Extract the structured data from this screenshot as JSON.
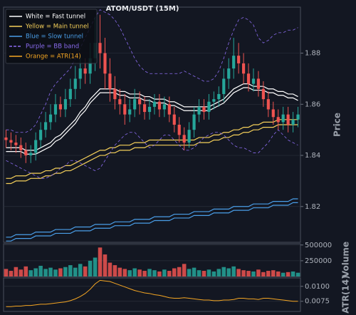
{
  "chart_data": {
    "type": "candlestick",
    "title": "ATOM/USDT (15M)",
    "ylabel": "Price",
    "up_color": "#26a69a",
    "down_color": "#ef5350",
    "grid": true,
    "legend": "upper left",
    "ylim": [
      1.806,
      1.898
    ],
    "yticks": [
      1.82,
      1.84,
      1.86,
      1.88
    ],
    "open": [
      1.847,
      1.846,
      1.845,
      1.844,
      1.842,
      1.84,
      1.841,
      1.846,
      1.85,
      1.853,
      1.856,
      1.86,
      1.858,
      1.862,
      1.866,
      1.87,
      1.874,
      1.872,
      1.878,
      1.884,
      1.88,
      1.872,
      1.866,
      1.862,
      1.86,
      1.856,
      1.858,
      1.862,
      1.86,
      1.857,
      1.859,
      1.861,
      1.858,
      1.86,
      1.856,
      1.852,
      1.848,
      1.845,
      1.85,
      1.856,
      1.859,
      1.857,
      1.861,
      1.862,
      1.864,
      1.87,
      1.874,
      1.879,
      1.876,
      1.872,
      1.868,
      1.87,
      1.866,
      1.862,
      1.858,
      1.855,
      1.853,
      1.856,
      1.852,
      1.854
    ],
    "high": [
      1.85,
      1.849,
      1.848,
      1.847,
      1.845,
      1.844,
      1.849,
      1.853,
      1.857,
      1.86,
      1.864,
      1.863,
      1.866,
      1.87,
      1.875,
      1.879,
      1.878,
      1.884,
      1.894,
      1.895,
      1.886,
      1.878,
      1.871,
      1.866,
      1.864,
      1.862,
      1.866,
      1.865,
      1.863,
      1.862,
      1.864,
      1.864,
      1.863,
      1.863,
      1.859,
      1.855,
      1.851,
      1.853,
      1.859,
      1.862,
      1.862,
      1.864,
      1.865,
      1.867,
      1.874,
      1.878,
      1.886,
      1.884,
      1.88,
      1.876,
      1.874,
      1.873,
      1.869,
      1.865,
      1.861,
      1.858,
      1.859,
      1.859,
      1.857,
      1.859
    ],
    "low": [
      1.843,
      1.842,
      1.841,
      1.839,
      1.837,
      1.837,
      1.838,
      1.843,
      1.847,
      1.85,
      1.853,
      1.855,
      1.855,
      1.859,
      1.862,
      1.866,
      1.868,
      1.868,
      1.873,
      1.874,
      1.866,
      1.861,
      1.858,
      1.856,
      1.852,
      1.853,
      1.855,
      1.856,
      1.854,
      1.854,
      1.856,
      1.855,
      1.855,
      1.853,
      1.849,
      1.845,
      1.842,
      1.843,
      1.847,
      1.853,
      1.854,
      1.854,
      1.858,
      1.859,
      1.861,
      1.866,
      1.87,
      1.872,
      1.868,
      1.865,
      1.865,
      1.863,
      1.859,
      1.855,
      1.852,
      1.85,
      1.85,
      1.849,
      1.849,
      1.851
    ],
    "close": [
      1.846,
      1.845,
      1.844,
      1.842,
      1.84,
      1.841,
      1.846,
      1.85,
      1.853,
      1.856,
      1.86,
      1.858,
      1.862,
      1.866,
      1.87,
      1.874,
      1.872,
      1.878,
      1.884,
      1.88,
      1.872,
      1.866,
      1.862,
      1.86,
      1.856,
      1.858,
      1.862,
      1.86,
      1.857,
      1.859,
      1.861,
      1.858,
      1.86,
      1.856,
      1.852,
      1.848,
      1.845,
      1.85,
      1.856,
      1.859,
      1.857,
      1.861,
      1.862,
      1.864,
      1.87,
      1.874,
      1.879,
      1.876,
      1.872,
      1.868,
      1.87,
      1.866,
      1.862,
      1.858,
      1.855,
      1.853,
      1.856,
      1.852,
      1.854,
      1.856
    ],
    "overlays": [
      {
        "name": "White = Fast tunnel",
        "color": "#ffffff",
        "dashed": false,
        "upper": [
          1.843,
          1.843,
          1.843,
          1.843,
          1.842,
          1.842,
          1.842,
          1.843,
          1.844,
          1.845,
          1.847,
          1.848,
          1.85,
          1.852,
          1.854,
          1.857,
          1.859,
          1.862,
          1.864,
          1.866,
          1.866,
          1.866,
          1.866,
          1.865,
          1.865,
          1.864,
          1.864,
          1.864,
          1.863,
          1.863,
          1.862,
          1.862,
          1.862,
          1.861,
          1.861,
          1.86,
          1.859,
          1.859,
          1.859,
          1.859,
          1.859,
          1.859,
          1.86,
          1.861,
          1.862,
          1.864,
          1.866,
          1.867,
          1.868,
          1.868,
          1.867,
          1.867,
          1.867,
          1.866,
          1.866,
          1.865,
          1.865,
          1.864,
          1.864,
          1.863
        ],
        "lower": [
          1.8415,
          1.8415,
          1.8415,
          1.8415,
          1.8405,
          1.8405,
          1.8405,
          1.8415,
          1.8425,
          1.8435,
          1.8455,
          1.8465,
          1.8485,
          1.8505,
          1.8525,
          1.8555,
          1.8575,
          1.8605,
          1.8625,
          1.8645,
          1.8645,
          1.8645,
          1.8645,
          1.8635,
          1.8635,
          1.8625,
          1.8625,
          1.8625,
          1.8615,
          1.8615,
          1.8605,
          1.8605,
          1.8605,
          1.8595,
          1.8595,
          1.8585,
          1.8575,
          1.8575,
          1.8575,
          1.8575,
          1.8575,
          1.8575,
          1.8585,
          1.8595,
          1.8605,
          1.8625,
          1.8645,
          1.8655,
          1.8665,
          1.8665,
          1.8655,
          1.8655,
          1.8655,
          1.8645,
          1.8645,
          1.8635,
          1.8635,
          1.8625,
          1.8625,
          1.8615
        ]
      },
      {
        "name": "Yellow = Main tunnel",
        "color": "#f5d05a",
        "dashed": false,
        "upper": [
          1.831,
          1.831,
          1.832,
          1.832,
          1.832,
          1.833,
          1.833,
          1.833,
          1.834,
          1.834,
          1.835,
          1.835,
          1.836,
          1.836,
          1.837,
          1.838,
          1.839,
          1.84,
          1.841,
          1.842,
          1.842,
          1.843,
          1.843,
          1.844,
          1.844,
          1.844,
          1.845,
          1.845,
          1.845,
          1.846,
          1.846,
          1.846,
          1.846,
          1.846,
          1.846,
          1.846,
          1.846,
          1.846,
          1.846,
          1.847,
          1.847,
          1.847,
          1.848,
          1.848,
          1.849,
          1.849,
          1.85,
          1.85,
          1.851,
          1.851,
          1.852,
          1.852,
          1.853,
          1.853,
          1.853,
          1.854,
          1.854,
          1.854,
          1.854,
          1.854
        ],
        "lower": [
          1.829,
          1.829,
          1.83,
          1.83,
          1.83,
          1.831,
          1.831,
          1.831,
          1.832,
          1.832,
          1.833,
          1.833,
          1.834,
          1.834,
          1.835,
          1.836,
          1.837,
          1.838,
          1.839,
          1.84,
          1.84,
          1.841,
          1.841,
          1.842,
          1.842,
          1.842,
          1.843,
          1.843,
          1.843,
          1.844,
          1.844,
          1.844,
          1.844,
          1.844,
          1.844,
          1.844,
          1.844,
          1.844,
          1.844,
          1.845,
          1.845,
          1.845,
          1.846,
          1.846,
          1.847,
          1.847,
          1.848,
          1.848,
          1.849,
          1.849,
          1.85,
          1.85,
          1.851,
          1.851,
          1.851,
          1.852,
          1.852,
          1.852,
          1.852,
          1.852
        ]
      },
      {
        "name": "Blue = Slow tunnel",
        "color": "#4a9ee8",
        "dashed": false,
        "upper": [
          1.808,
          1.808,
          1.809,
          1.809,
          1.809,
          1.809,
          1.81,
          1.81,
          1.81,
          1.81,
          1.811,
          1.811,
          1.811,
          1.811,
          1.812,
          1.812,
          1.812,
          1.812,
          1.813,
          1.813,
          1.813,
          1.813,
          1.814,
          1.814,
          1.814,
          1.814,
          1.815,
          1.815,
          1.815,
          1.815,
          1.816,
          1.816,
          1.816,
          1.816,
          1.817,
          1.817,
          1.817,
          1.817,
          1.818,
          1.818,
          1.818,
          1.818,
          1.819,
          1.819,
          1.819,
          1.819,
          1.82,
          1.82,
          1.82,
          1.82,
          1.821,
          1.821,
          1.821,
          1.821,
          1.822,
          1.822,
          1.822,
          1.822,
          1.823,
          1.823
        ],
        "lower": [
          1.8065,
          1.8065,
          1.8075,
          1.8075,
          1.8075,
          1.8075,
          1.8085,
          1.8085,
          1.8085,
          1.8085,
          1.8095,
          1.8095,
          1.8095,
          1.8095,
          1.8105,
          1.8105,
          1.8105,
          1.8105,
          1.8115,
          1.8115,
          1.8115,
          1.8115,
          1.8125,
          1.8125,
          1.8125,
          1.8125,
          1.8135,
          1.8135,
          1.8135,
          1.8135,
          1.8145,
          1.8145,
          1.8145,
          1.8145,
          1.8155,
          1.8155,
          1.8155,
          1.8155,
          1.8165,
          1.8165,
          1.8165,
          1.8165,
          1.8175,
          1.8175,
          1.8175,
          1.8175,
          1.8185,
          1.8185,
          1.8185,
          1.8185,
          1.8195,
          1.8195,
          1.8195,
          1.8195,
          1.8205,
          1.8205,
          1.8205,
          1.8205,
          1.8215,
          1.8215
        ]
      },
      {
        "name": "Purple = BB band",
        "color": "#8b6cf0",
        "dashed": true,
        "upper": [
          1.85,
          1.85,
          1.849,
          1.849,
          1.849,
          1.85,
          1.852,
          1.856,
          1.86,
          1.865,
          1.868,
          1.87,
          1.872,
          1.874,
          1.878,
          1.882,
          1.886,
          1.89,
          1.894,
          1.897,
          1.896,
          1.895,
          1.893,
          1.89,
          1.886,
          1.882,
          1.878,
          1.875,
          1.873,
          1.872,
          1.872,
          1.872,
          1.872,
          1.872,
          1.872,
          1.872,
          1.873,
          1.872,
          1.871,
          1.87,
          1.869,
          1.869,
          1.87,
          1.873,
          1.878,
          1.884,
          1.889,
          1.893,
          1.894,
          1.893,
          1.891,
          1.886,
          1.884,
          1.885,
          1.887,
          1.888,
          1.888,
          1.889,
          1.889,
          1.89
        ],
        "lower": [
          1.838,
          1.837,
          1.836,
          1.835,
          1.834,
          1.833,
          1.832,
          1.831,
          1.831,
          1.832,
          1.833,
          1.835,
          1.836,
          1.838,
          1.838,
          1.837,
          1.836,
          1.835,
          1.834,
          1.835,
          1.838,
          1.841,
          1.844,
          1.846,
          1.848,
          1.849,
          1.849,
          1.847,
          1.845,
          1.843,
          1.844,
          1.846,
          1.848,
          1.848,
          1.846,
          1.844,
          1.842,
          1.842,
          1.843,
          1.845,
          1.847,
          1.848,
          1.849,
          1.849,
          1.848,
          1.846,
          1.844,
          1.843,
          1.843,
          1.842,
          1.841,
          1.841,
          1.843,
          1.845,
          1.848,
          1.85,
          1.848,
          1.846,
          1.845,
          1.844
        ]
      }
    ],
    "volume": {
      "ylabel": "Volume",
      "ylim": [
        0,
        520000
      ],
      "yticks": [
        250000,
        500000
      ],
      "values": [
        120000,
        90000,
        150000,
        110000,
        160000,
        100000,
        130000,
        170000,
        120000,
        140000,
        110000,
        130000,
        150000,
        180000,
        140000,
        200000,
        160000,
        250000,
        300000,
        460000,
        350000,
        220000,
        180000,
        140000,
        120000,
        100000,
        130000,
        110000,
        90000,
        120000,
        100000,
        80000,
        110000,
        90000,
        130000,
        150000,
        200000,
        120000,
        140000,
        100000,
        90000,
        110000,
        80000,
        120000,
        150000,
        130000,
        160000,
        120000,
        100000,
        90000,
        80000,
        110000,
        70000,
        90000,
        100000,
        80000,
        60000,
        70000,
        80000,
        60000
      ]
    },
    "atr": {
      "name": "Orange = ATR(14)",
      "ylabel": "ATR(14)",
      "color": "#f5a623",
      "ylim": [
        0.0058,
        0.0114
      ],
      "yticks": [
        {
          "value": 0.0075,
          "label": "0.0075"
        },
        {
          "value": 0.01,
          "label": "0.0100"
        }
      ],
      "values": [
        0.0066,
        0.0066,
        0.0067,
        0.0067,
        0.0068,
        0.0068,
        0.0069,
        0.007,
        0.007,
        0.0071,
        0.0072,
        0.0073,
        0.0074,
        0.0076,
        0.0079,
        0.0083,
        0.0088,
        0.0095,
        0.0104,
        0.011,
        0.0109,
        0.0108,
        0.0105,
        0.0102,
        0.0099,
        0.0096,
        0.0093,
        0.0091,
        0.0089,
        0.0088,
        0.0086,
        0.0085,
        0.0083,
        0.0081,
        0.008,
        0.008,
        0.0081,
        0.008,
        0.0079,
        0.0078,
        0.0077,
        0.0077,
        0.0076,
        0.0076,
        0.0077,
        0.0077,
        0.0078,
        0.008,
        0.008,
        0.0079,
        0.0079,
        0.0078,
        0.008,
        0.008,
        0.0079,
        0.0078,
        0.0077,
        0.0076,
        0.0075,
        0.0075
      ]
    }
  }
}
